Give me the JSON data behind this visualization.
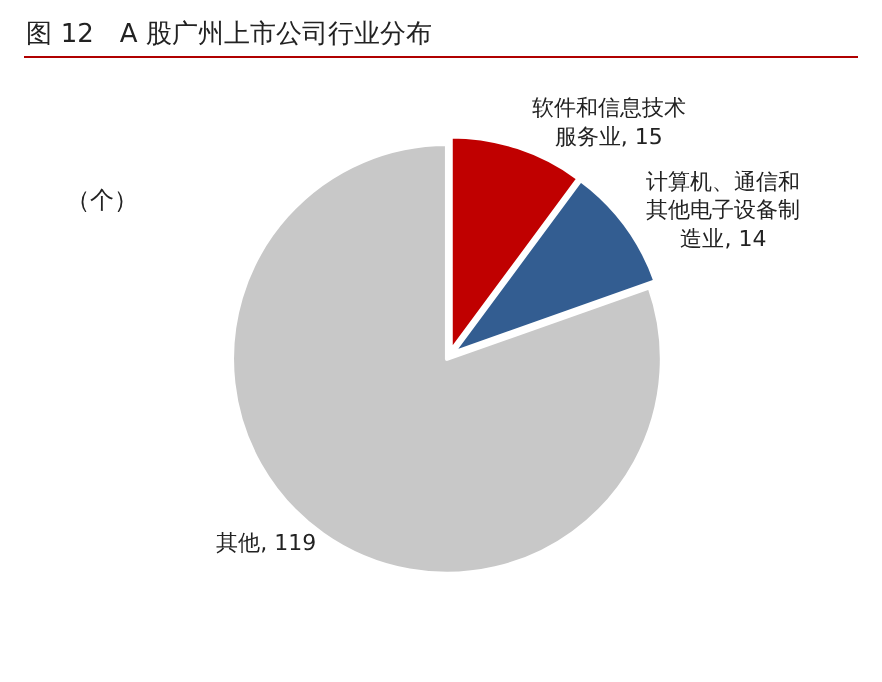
{
  "chart_data": {
    "type": "pie",
    "title": "图 12　A 股广州上市公司行业分布",
    "annotations": [
      "（个）"
    ],
    "categories": [
      "软件和信息技术服务业, 15",
      "计算机、通信和其他电子设备制造业, 14",
      "其他, 119"
    ],
    "values": [
      15,
      14,
      119
    ],
    "colors": [
      "#c00000",
      "#335d91",
      "#c8c8c8"
    ],
    "legend": false
  }
}
